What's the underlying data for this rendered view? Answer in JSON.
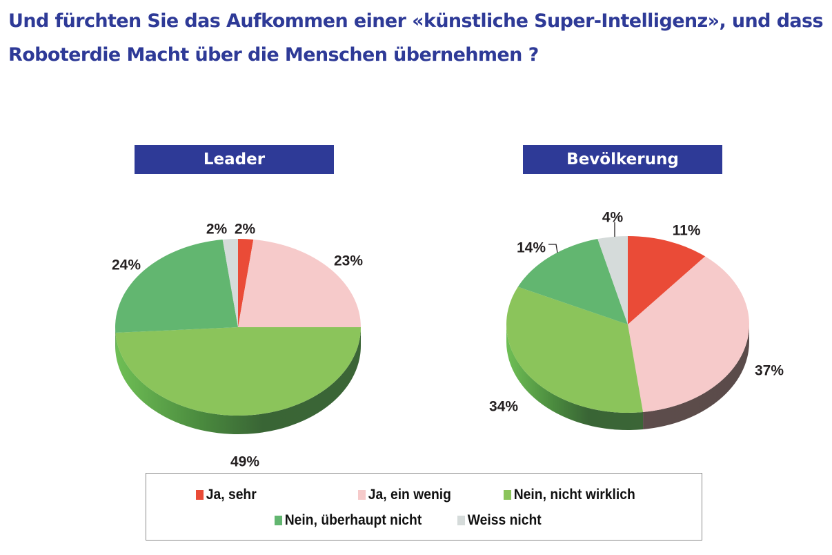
{
  "title": "Und fürchten Sie das Aufkommen einer «künstliche Super-Intelligenz», und dass Roboterdie Macht über die Menschen übernehmen ?",
  "colors": {
    "title": "#2e3a97",
    "panel_header": "#2e3a97"
  },
  "chart_data": [
    {
      "type": "pie",
      "title": "Leader",
      "categories": [
        "Ja, sehr",
        "Ja, ein wenig",
        "Nein, nicht wirklich",
        "Nein, überhaupt nicht",
        "Weiss nicht"
      ],
      "values": [
        2,
        23,
        49,
        24,
        2
      ],
      "labels": [
        "2%",
        "23%",
        "49%",
        "24%",
        "2%"
      ],
      "colors": [
        "#ea4b37",
        "#f6caca",
        "#8bc45b",
        "#62b670",
        "#d5dbda"
      ],
      "style": "3d-tilted"
    },
    {
      "type": "pie",
      "title": "Bevölkerung",
      "categories": [
        "Ja, sehr",
        "Ja, ein wenig",
        "Nein, nicht wirklich",
        "Nein, überhaupt nicht",
        "Weiss nicht"
      ],
      "values": [
        11,
        37,
        34,
        14,
        4
      ],
      "labels": [
        "11%",
        "37%",
        "34%",
        "14%",
        "4%"
      ],
      "colors": [
        "#ea4b37",
        "#f6caca",
        "#8bc45b",
        "#62b670",
        "#d5dbda"
      ],
      "style": "3d-tilted"
    }
  ],
  "legend": {
    "placement": "bottom",
    "items": [
      {
        "label": "Ja, sehr",
        "color": "#ea4b37"
      },
      {
        "label": "Ja, ein wenig",
        "color": "#f6caca"
      },
      {
        "label": "Nein, nicht wirklich",
        "color": "#8bc45b"
      },
      {
        "label": "Nein, überhaupt nicht",
        "color": "#62b670"
      },
      {
        "label": "Weiss nicht",
        "color": "#d5dbda"
      }
    ]
  }
}
